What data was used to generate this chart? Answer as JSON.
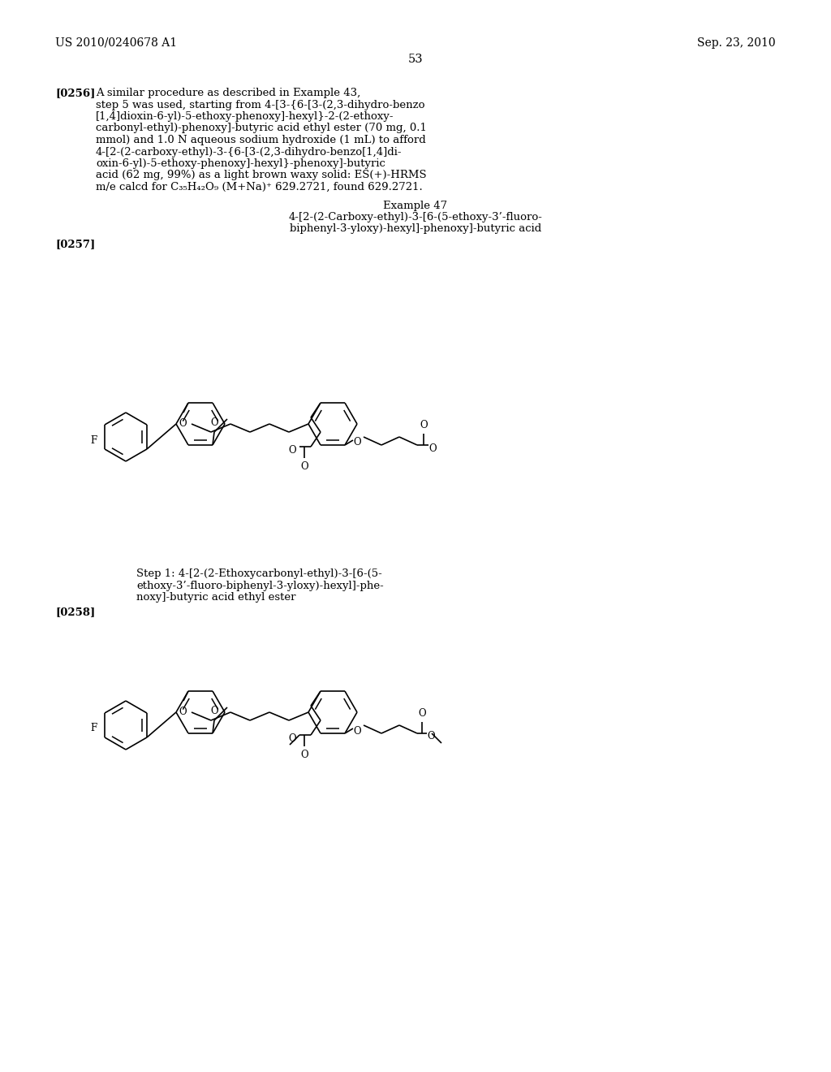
{
  "background_color": "#ffffff",
  "header_left": "US 2010/0240678 A1",
  "header_right": "Sep. 23, 2010",
  "page_number": "53",
  "para256_label": "[0256]",
  "para256_line1": "A similar procedure as described in Example 43,",
  "para256_line2": "step 5 was used, starting from 4-[3-{6-[3-(2,3-dihydro-benzo",
  "para256_line3": "[1,4]dioxin-6-yl)-5-ethoxy-phenoxy]-hexyl}-2-(2-ethoxy-",
  "para256_line4": "carbonyl-ethyl)-phenoxy]-butyric acid ethyl ester (70 mg, 0.1",
  "para256_line5": "mmol) and 1.0 N aqueous sodium hydroxide (1 mL) to afford",
  "para256_line6": "4-[2-(2-carboxy-ethyl)-3-{6-[3-(2,3-dihydro-benzo[1,4]di-",
  "para256_line7": "oxin-6-yl)-5-ethoxy-phenoxy]-hexyl}-phenoxy]-butyric",
  "para256_line8": "acid (62 mg, 99%) as a light brown waxy solid: ES(+)-HRMS",
  "para256_line9": "m/e calcd for C₃₅H₄₂O₉ (M+Na)⁺ 629.2721, found 629.2721.",
  "example47_title": "Example 47",
  "example47_sub1": "4-[2-(2-Carboxy-ethyl)-3-[6-(5-ethoxy-3’-fluoro-",
  "example47_sub2": "biphenyl-3-yloxy)-hexyl]-phenoxy]-butyric acid",
  "para257_label": "[0257]",
  "step1_line1": "Step 1: 4-[2-(2-Ethoxycarbonyl-ethyl)-3-[6-(5-",
  "step1_line2": "ethoxy-3’-fluoro-biphenyl-3-yloxy)-hexyl]-phe-",
  "step1_line3": "noxy]-butyric acid ethyl ester",
  "para258_label": "[0258]"
}
